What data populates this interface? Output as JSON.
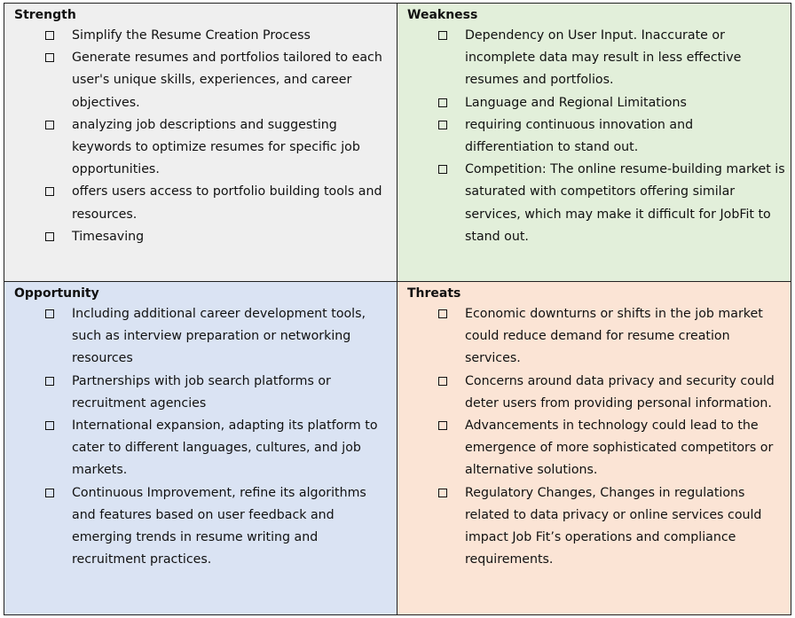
{
  "quadrants": {
    "strength": {
      "title": "Strength",
      "items": [
        "Simplify the Resume Creation Process",
        "Generate resumes and portfolios tailored to each user's unique skills, experiences, and career objectives.",
        "analyzing job descriptions and suggesting keywords to optimize resumes for specific job opportunities.",
        "offers users access to portfolio building tools and resources.",
        "Timesaving"
      ]
    },
    "weakness": {
      "title": "Weakness",
      "items": [
        "Dependency on User Input. Inaccurate or incomplete data may result in less effective resumes and portfolios.",
        "Language and Regional Limitations",
        "requiring continuous innovation and differentiation to stand out.",
        "Competition: The online resume-building market is saturated with competitors offering similar services, which may make it difficult for JobFit to stand out."
      ]
    },
    "opportunity": {
      "title": "Opportunity",
      "items": [
        "Including additional career development tools, such as interview preparation or networking resources",
        "Partnerships with job search platforms or recruitment agencies",
        "International expansion, adapting its platform to cater to different languages, cultures, and job markets.",
        "Continuous Improvement, refine its algorithms and features based on user feedback and emerging trends in resume writing and recruitment practices."
      ]
    },
    "threats": {
      "title": "Threats",
      "items": [
        "Economic downturns or shifts in the job market could reduce demand for resume creation services.",
        "Concerns around data privacy and security could deter users from providing personal information.",
        "Advancements in technology could lead to the emergence of more sophisticated competitors or alternative solutions.",
        "Regulatory Changes, Changes in regulations related to data privacy or online services could impact Job Fit’s operations and compliance requirements."
      ]
    }
  },
  "colors": {
    "strength_bg": "#efefef",
    "weakness_bg": "#e2efda",
    "opportunity_bg": "#dae3f3",
    "threats_bg": "#fbe4d5"
  },
  "icons": {
    "bullet": "checkbox-icon"
  }
}
